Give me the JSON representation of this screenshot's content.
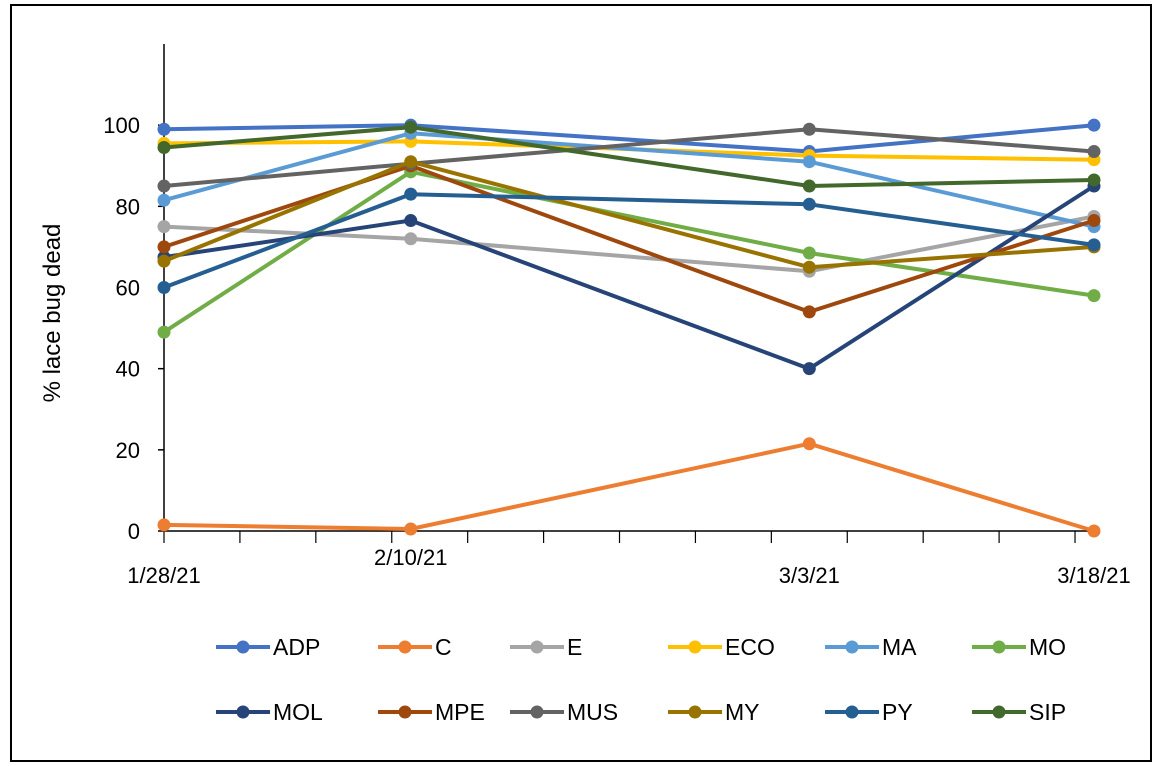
{
  "chart_data": {
    "type": "line",
    "ylabel": "% lace bug dead",
    "ylim": [
      0,
      120
    ],
    "yticks": [
      0,
      20,
      40,
      60,
      80,
      100
    ],
    "x": [
      "1/28/21",
      "2/10/21",
      "3/3/21",
      "3/18/21"
    ],
    "xlim": [
      "1/28/21",
      "3/18/21"
    ],
    "grid": false,
    "legend_position": "bottom",
    "series": [
      {
        "name": "ADP",
        "color": "#4472C4",
        "values": [
          99,
          100,
          93.5,
          100
        ]
      },
      {
        "name": "C",
        "color": "#ED7D31",
        "values": [
          1.5,
          0.5,
          21.5,
          0
        ]
      },
      {
        "name": "E",
        "color": "#A5A5A5",
        "values": [
          75,
          72,
          64,
          77.5
        ]
      },
      {
        "name": "ECO",
        "color": "#FFC000",
        "values": [
          95.5,
          96,
          92.5,
          91.5
        ]
      },
      {
        "name": "MA",
        "color": "#5B9BD5",
        "values": [
          81.5,
          98,
          91,
          75
        ]
      },
      {
        "name": "MO",
        "color": "#70AD47",
        "values": [
          49,
          88.5,
          68.5,
          58
        ]
      },
      {
        "name": "MOL",
        "color": "#264478",
        "values": [
          67.5,
          76.5,
          40,
          85
        ]
      },
      {
        "name": "MPE",
        "color": "#9E480E",
        "values": [
          70,
          90,
          54,
          76.5
        ]
      },
      {
        "name": "MUS",
        "color": "#636363",
        "values": [
          85,
          90.5,
          99,
          93.5
        ]
      },
      {
        "name": "MY",
        "color": "#997300",
        "values": [
          66.5,
          91,
          65,
          70
        ]
      },
      {
        "name": "PY",
        "color": "#255E91",
        "values": [
          60,
          83,
          80.5,
          70.5
        ]
      },
      {
        "name": "SIP",
        "color": "#43682B",
        "values": [
          94.5,
          99.5,
          85,
          86.5
        ]
      }
    ]
  }
}
